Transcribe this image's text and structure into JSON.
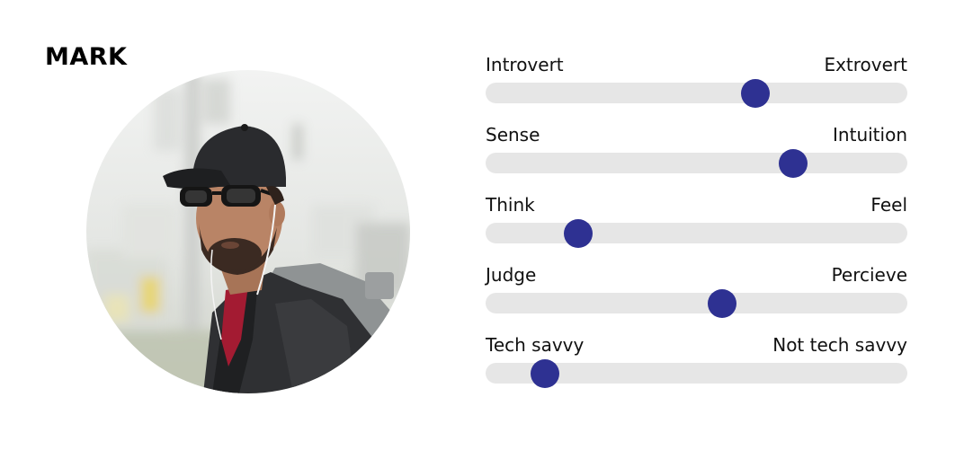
{
  "persona": {
    "name": "MARK"
  },
  "colors": {
    "knob": "#2e3192",
    "track": "#e6e6e6"
  },
  "traits": [
    {
      "left_label": "Introvert",
      "right_label": "Extrovert",
      "value": 0.64
    },
    {
      "left_label": "Sense",
      "right_label": "Intuition",
      "value": 0.73
    },
    {
      "left_label": "Think",
      "right_label": "Feel",
      "value": 0.22
    },
    {
      "left_label": "Judge",
      "right_label": "Percieve",
      "value": 0.56
    },
    {
      "left_label": "Tech savvy",
      "right_label": "Not tech savvy",
      "value": 0.14
    }
  ]
}
